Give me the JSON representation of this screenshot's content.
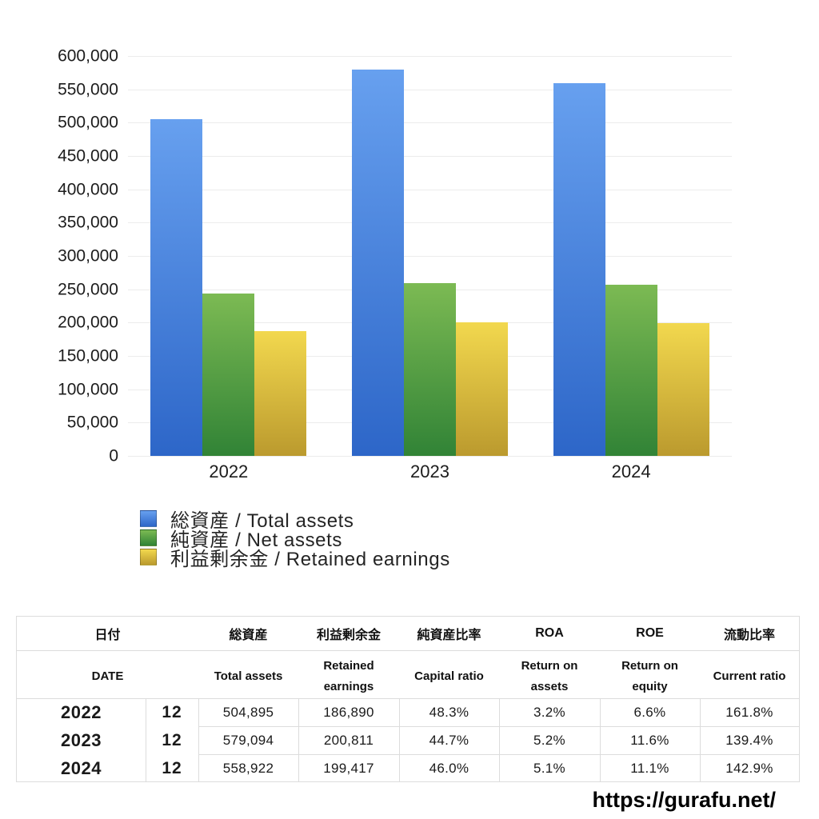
{
  "chart_data": {
    "type": "bar",
    "categories": [
      "2022",
      "2023",
      "2024"
    ],
    "series": [
      {
        "name": "総資産 / Total assets",
        "values": [
          504895,
          579094,
          558922
        ],
        "color_top": "#67a0ef",
        "color_bottom": "#2d66c8"
      },
      {
        "name": "純資産 / Net assets",
        "values": [
          243864,
          258855,
          257104
        ],
        "color_top": "#7cba53",
        "color_bottom": "#318336"
      },
      {
        "name": "利益剰余金 / Retained earnings",
        "values": [
          186890,
          200811,
          199417
        ],
        "color_top": "#f2d84e",
        "color_bottom": "#bb9a2e"
      }
    ],
    "title": "",
    "xlabel": "",
    "ylabel": "",
    "ylim": [
      0,
      600000
    ],
    "ytick_step": 50000,
    "grid": true,
    "legend_position": "bottom-left"
  },
  "table": {
    "header_ja": [
      "日付",
      "総資産",
      "利益剰余金",
      "純資産比率",
      "ROA",
      "ROE",
      "流動比率"
    ],
    "header_en": [
      "DATE",
      "Total assets",
      "Retained earnings",
      "Capital ratio",
      "Return on assets",
      "Return on equity",
      "Current ratio"
    ],
    "rows": [
      {
        "year": "2022",
        "month": "12",
        "values": [
          "504,895",
          "186,890",
          "48.3%",
          "3.2%",
          "6.6%",
          "161.8%"
        ]
      },
      {
        "year": "2023",
        "month": "12",
        "values": [
          "579,094",
          "200,811",
          "44.7%",
          "5.2%",
          "11.6%",
          "139.4%"
        ]
      },
      {
        "year": "2024",
        "month": "12",
        "values": [
          "558,922",
          "199,417",
          "46.0%",
          "5.1%",
          "11.1%",
          "142.9%"
        ]
      }
    ]
  },
  "footer": {
    "url_text": "https://gurafu.net/"
  },
  "colors": {
    "grid": "#ececec",
    "axis_text": "#1c1c1c",
    "table_border": "#dcdcdc",
    "text": "#111111"
  }
}
